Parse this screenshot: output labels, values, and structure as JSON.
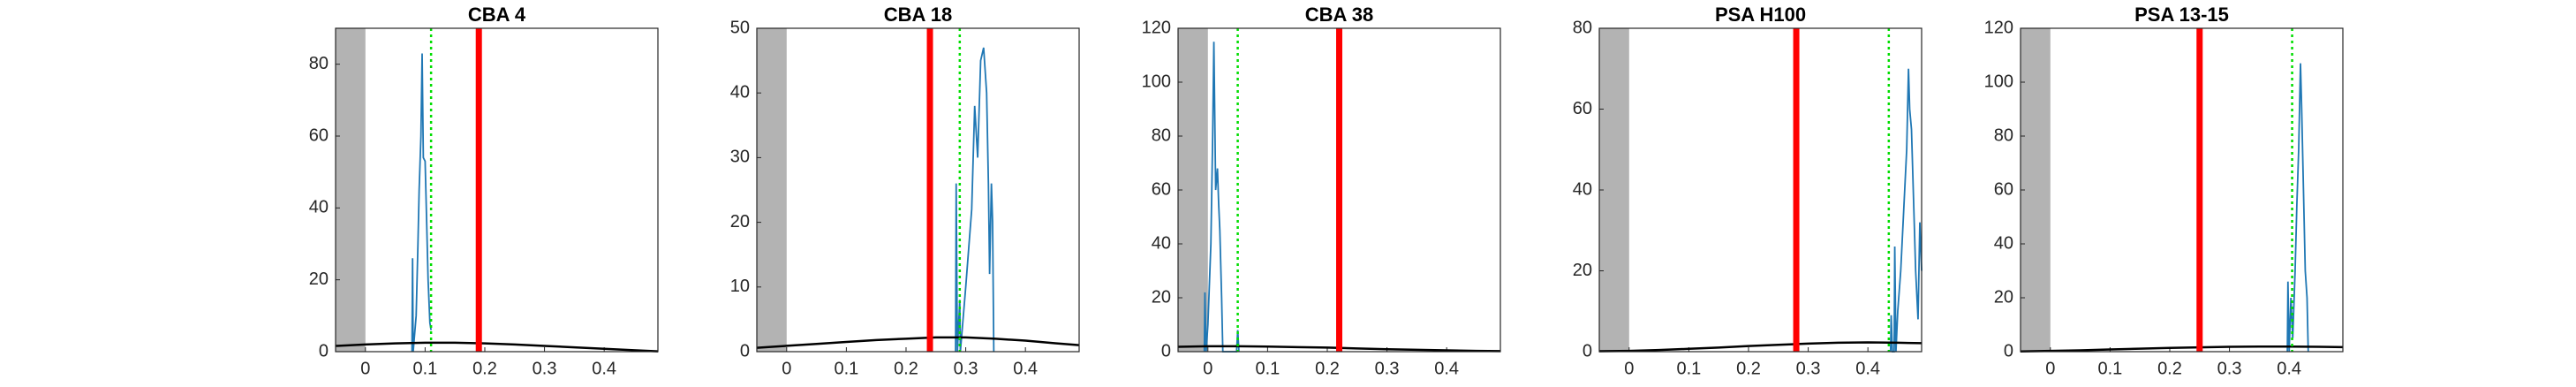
{
  "chart_data": [
    {
      "type": "line",
      "title": "CBA 4",
      "xlim": [
        -0.05,
        0.49
      ],
      "ylim": [
        0,
        90
      ],
      "xticks": [
        0,
        0.1,
        0.2,
        0.3,
        0.4
      ],
      "yticks": [
        0,
        20,
        40,
        60,
        80
      ],
      "shade": [
        -0.05,
        0
      ],
      "shade_color": "#b3b3b3",
      "vlines": [
        {
          "x": 0.19,
          "color": "#ff0000",
          "style": "solid"
        },
        {
          "x": 0.11,
          "color": "#00dd00",
          "style": "dotted"
        }
      ],
      "series": [
        {
          "color": "#1f77b4",
          "x": [
            0.078,
            0.079,
            0.08,
            0.085,
            0.088,
            0.09,
            0.093,
            0.095,
            0.097,
            0.1,
            0.102,
            0.105,
            0.108,
            0.11
          ],
          "values": [
            0,
            26,
            0,
            10,
            30,
            45,
            60,
            83,
            54,
            53,
            40,
            20,
            8,
            6
          ]
        },
        {
          "color": "#000000",
          "x": [
            -0.05,
            0.0,
            0.05,
            0.1,
            0.15,
            0.2,
            0.25,
            0.3,
            0.35,
            0.4,
            0.45,
            0.49
          ],
          "values": [
            1.6,
            2.0,
            2.3,
            2.5,
            2.5,
            2.3,
            2.0,
            1.6,
            1.2,
            0.8,
            0.4,
            0.1
          ]
        }
      ]
    },
    {
      "type": "line",
      "title": "CBA 18",
      "xlim": [
        -0.05,
        0.49
      ],
      "ylim": [
        0,
        50
      ],
      "xticks": [
        0,
        0.1,
        0.2,
        0.3,
        0.4
      ],
      "yticks": [
        0,
        10,
        20,
        30,
        40,
        50
      ],
      "shade": [
        -0.05,
        0
      ],
      "shade_color": "#b3b3b3",
      "vlines": [
        {
          "x": 0.24,
          "color": "#ff0000",
          "style": "solid"
        },
        {
          "x": 0.29,
          "color": "#00dd00",
          "style": "dotted"
        }
      ],
      "series": [
        {
          "color": "#1f77b4",
          "x": [
            0.283,
            0.284,
            0.286,
            0.29,
            0.291,
            0.3,
            0.31,
            0.315,
            0.32,
            0.325,
            0.33,
            0.335,
            0.338,
            0.34,
            0.343,
            0.345,
            0.347
          ],
          "values": [
            0,
            26,
            0,
            8,
            0,
            10,
            22,
            38,
            30,
            45,
            47,
            40,
            26,
            12,
            26,
            20,
            0
          ]
        },
        {
          "color": "#000000",
          "x": [
            -0.05,
            0.0,
            0.05,
            0.1,
            0.15,
            0.2,
            0.25,
            0.3,
            0.35,
            0.4,
            0.45,
            0.49
          ],
          "values": [
            0.6,
            0.9,
            1.2,
            1.5,
            1.8,
            2.0,
            2.2,
            2.2,
            2.0,
            1.7,
            1.3,
            1.0
          ]
        }
      ]
    },
    {
      "type": "line",
      "title": "CBA 38",
      "xlim": [
        -0.05,
        0.49
      ],
      "ylim": [
        0,
        120
      ],
      "xticks": [
        0,
        0.1,
        0.2,
        0.3,
        0.4
      ],
      "yticks": [
        0,
        20,
        40,
        60,
        80,
        100,
        120
      ],
      "shade": [
        -0.05,
        0
      ],
      "shade_color": "#b3b3b3",
      "vlines": [
        {
          "x": 0.22,
          "color": "#ff0000",
          "style": "solid"
        },
        {
          "x": 0.05,
          "color": "#00dd00",
          "style": "dotted"
        }
      ],
      "series": [
        {
          "color": "#1f77b4",
          "x": [
            -0.006,
            -0.005,
            -0.003,
            0.0,
            0.005,
            0.008,
            0.01,
            0.013,
            0.016,
            0.018,
            0.02,
            0.023,
            0.025,
            0.048,
            0.05,
            0.052
          ],
          "values": [
            0,
            22,
            0,
            10,
            40,
            80,
            115,
            60,
            68,
            55,
            45,
            20,
            0,
            0,
            8,
            0
          ]
        },
        {
          "color": "#000000",
          "x": [
            -0.05,
            0.0,
            0.05,
            0.1,
            0.15,
            0.2,
            0.25,
            0.3,
            0.35,
            0.4,
            0.45,
            0.49
          ],
          "values": [
            1.8,
            2.0,
            2.0,
            1.9,
            1.7,
            1.5,
            1.2,
            0.9,
            0.7,
            0.5,
            0.3,
            0.2
          ]
        }
      ]
    },
    {
      "type": "line",
      "title": "PSA H100",
      "xlim": [
        -0.05,
        0.49
      ],
      "ylim": [
        0,
        80
      ],
      "xticks": [
        0,
        0.1,
        0.2,
        0.3,
        0.4
      ],
      "yticks": [
        0,
        20,
        40,
        60,
        80
      ],
      "shade": [
        -0.05,
        0
      ],
      "shade_color": "#b3b3b3",
      "vlines": [
        {
          "x": 0.28,
          "color": "#ff0000",
          "style": "solid"
        },
        {
          "x": 0.435,
          "color": "#00dd00",
          "style": "dotted"
        }
      ],
      "series": [
        {
          "color": "#1f77b4",
          "x": [
            0.438,
            0.439,
            0.441,
            0.444,
            0.445,
            0.447,
            0.45,
            0.455,
            0.46,
            0.465,
            0.468,
            0.47,
            0.473,
            0.476,
            0.48,
            0.484,
            0.487,
            0.49
          ],
          "values": [
            0,
            9,
            0,
            0,
            26,
            0,
            10,
            20,
            35,
            50,
            70,
            60,
            55,
            40,
            20,
            8,
            32,
            20
          ]
        },
        {
          "color": "#000000",
          "x": [
            -0.05,
            0.0,
            0.05,
            0.1,
            0.15,
            0.2,
            0.25,
            0.3,
            0.35,
            0.4,
            0.45,
            0.49
          ],
          "values": [
            0.1,
            0.2,
            0.4,
            0.7,
            1.0,
            1.4,
            1.7,
            2.0,
            2.2,
            2.3,
            2.2,
            2.1
          ]
        }
      ]
    },
    {
      "type": "line",
      "title": "PSA 13-15",
      "xlim": [
        -0.05,
        0.49
      ],
      "ylim": [
        0,
        120
      ],
      "xticks": [
        0,
        0.1,
        0.2,
        0.3,
        0.4
      ],
      "yticks": [
        0,
        20,
        40,
        60,
        80,
        100,
        120
      ],
      "shade": [
        -0.05,
        0
      ],
      "shade_color": "#b3b3b3",
      "vlines": [
        {
          "x": 0.25,
          "color": "#ff0000",
          "style": "solid"
        },
        {
          "x": 0.405,
          "color": "#00dd00",
          "style": "dotted"
        }
      ],
      "series": [
        {
          "color": "#1f77b4",
          "x": [
            0.397,
            0.398,
            0.4,
            0.403,
            0.406,
            0.41,
            0.413,
            0.416,
            0.419,
            0.421,
            0.424,
            0.427,
            0.43,
            0.432
          ],
          "values": [
            0,
            26,
            0,
            20,
            5,
            30,
            55,
            75,
            107,
            90,
            60,
            30,
            20,
            0
          ]
        },
        {
          "color": "#000000",
          "x": [
            -0.05,
            0.0,
            0.05,
            0.1,
            0.15,
            0.2,
            0.25,
            0.3,
            0.35,
            0.4,
            0.45,
            0.49
          ],
          "values": [
            0.1,
            0.3,
            0.5,
            0.8,
            1.1,
            1.4,
            1.6,
            1.8,
            1.9,
            1.9,
            1.8,
            1.7
          ]
        }
      ]
    }
  ]
}
